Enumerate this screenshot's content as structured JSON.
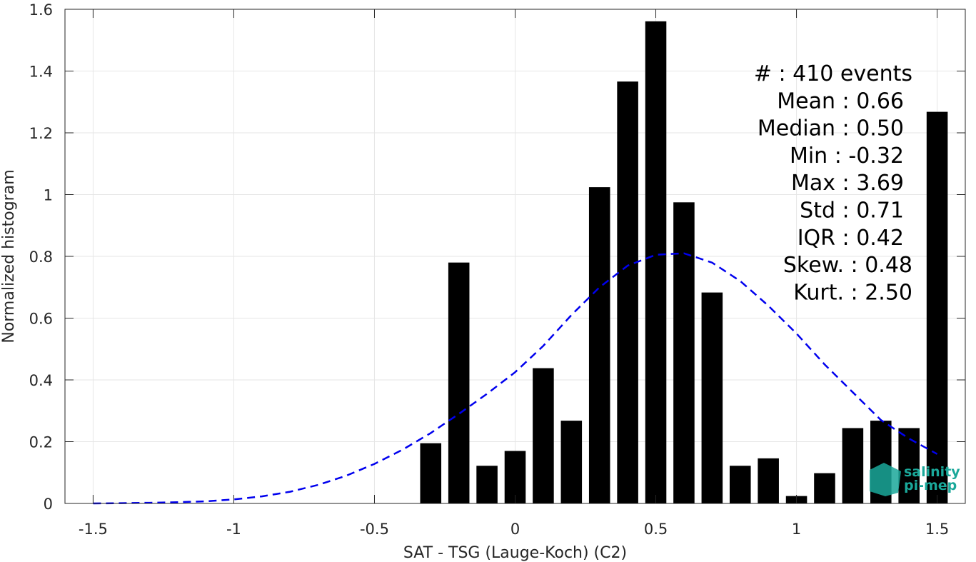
{
  "chart_data": {
    "type": "bar",
    "xlabel": "SAT - TSG (Lauge-Koch) (C2)",
    "ylabel": "Normalized histogram",
    "xlim": [
      -1.6,
      1.6
    ],
    "ylim": [
      0,
      1.6
    ],
    "xticks": [
      -1.5,
      -1,
      -0.5,
      0,
      0.5,
      1,
      1.5
    ],
    "xtick_labels": [
      "-1.5",
      "-1",
      "-0.5",
      "0",
      "0.5",
      "1",
      "1.5"
    ],
    "yticks": [
      0,
      0.2,
      0.4,
      0.6,
      0.8,
      1,
      1.2,
      1.4,
      1.6
    ],
    "ytick_labels": [
      "0",
      "0.2",
      "0.4",
      "0.6",
      "0.8",
      "1",
      "1.2",
      "1.4",
      "1.6"
    ],
    "grid": true,
    "bar_color": "#000000",
    "bin_width": 0.1,
    "bars": {
      "x": [
        -0.3,
        -0.2,
        -0.1,
        0.0,
        0.1,
        0.2,
        0.3,
        0.4,
        0.5,
        0.6,
        0.7,
        0.8,
        0.9,
        1.0,
        1.1,
        1.2,
        1.3,
        1.4,
        1.5
      ],
      "values": [
        0.195,
        0.78,
        0.122,
        0.17,
        0.438,
        0.268,
        1.024,
        1.366,
        1.561,
        0.975,
        0.683,
        0.122,
        0.146,
        0.024,
        0.098,
        0.244,
        0.268,
        0.244,
        1.268
      ]
    },
    "fit_curve": {
      "style": "dashed",
      "color": "#0000ee",
      "x": [
        -1.5,
        -1.4,
        -1.3,
        -1.2,
        -1.1,
        -1.0,
        -0.9,
        -0.8,
        -0.7,
        -0.6,
        -0.5,
        -0.4,
        -0.3,
        -0.2,
        -0.1,
        0.0,
        0.1,
        0.2,
        0.3,
        0.4,
        0.5,
        0.6,
        0.7,
        0.8,
        0.9,
        1.0,
        1.1,
        1.2,
        1.3,
        1.4,
        1.5
      ],
      "values": [
        0.0,
        0.001,
        0.002,
        0.004,
        0.007,
        0.013,
        0.023,
        0.038,
        0.06,
        0.09,
        0.128,
        0.174,
        0.228,
        0.29,
        0.355,
        0.425,
        0.51,
        0.61,
        0.7,
        0.77,
        0.805,
        0.81,
        0.78,
        0.72,
        0.64,
        0.55,
        0.45,
        0.36,
        0.27,
        0.21,
        0.16
      ]
    },
    "stats": [
      {
        "label": "#  : 410 events"
      },
      {
        "label": "Mean : 0.66"
      },
      {
        "label": "Median : 0.50"
      },
      {
        "label": "Min : -0.32"
      },
      {
        "label": "Max : 3.69"
      },
      {
        "label": "Std : 0.71"
      },
      {
        "label": "IQR : 0.42"
      },
      {
        "label": "Skew. : 0.48"
      },
      {
        "label": "Kurt. : 2.50"
      }
    ],
    "stats_placement": "top-right"
  },
  "logo": {
    "line1": "salinity",
    "line2": "pi-mep",
    "color": "#1aa89a"
  }
}
